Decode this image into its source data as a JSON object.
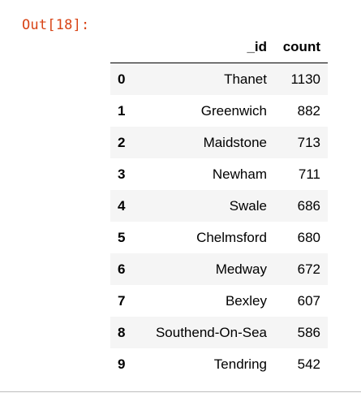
{
  "output": {
    "prompt": "Out[18]:"
  },
  "table": {
    "columns": [
      "_id",
      "count"
    ],
    "rows": [
      {
        "index": "0",
        "id": "Thanet",
        "count": "1130"
      },
      {
        "index": "1",
        "id": "Greenwich",
        "count": "882"
      },
      {
        "index": "2",
        "id": "Maidstone",
        "count": "713"
      },
      {
        "index": "3",
        "id": "Newham",
        "count": "711"
      },
      {
        "index": "4",
        "id": "Swale",
        "count": "686"
      },
      {
        "index": "5",
        "id": "Chelmsford",
        "count": "680"
      },
      {
        "index": "6",
        "id": "Medway",
        "count": "672"
      },
      {
        "index": "7",
        "id": "Bexley",
        "count": "607"
      },
      {
        "index": "8",
        "id": "Southend-On-Sea",
        "count": "586"
      },
      {
        "index": "9",
        "id": "Tendring",
        "count": "542"
      }
    ]
  }
}
